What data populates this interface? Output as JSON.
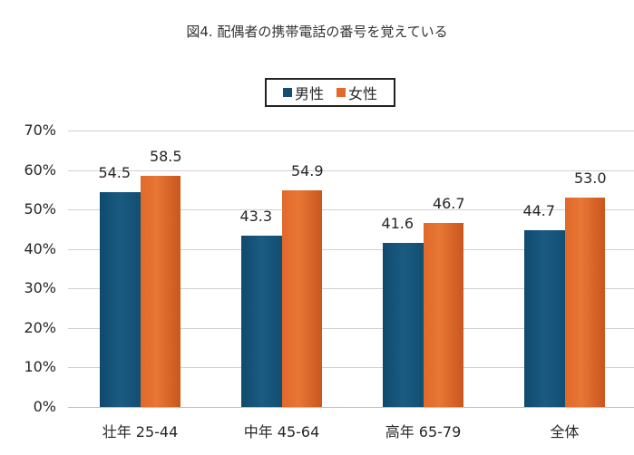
{
  "chart_data": {
    "type": "bar",
    "title": "図4. 配偶者の携帯電話の番号を覚えている",
    "xlabel": "",
    "ylabel": "",
    "categories": [
      "壮年 25-44",
      "中年 45-64",
      "高年 65-79",
      "全体"
    ],
    "series": [
      {
        "name": "男性",
        "color": "#134f73",
        "values": [
          54.5,
          43.3,
          41.6,
          44.7
        ],
        "labels": [
          "54.5",
          "43.3",
          "41.6",
          "44.7"
        ]
      },
      {
        "name": "女性",
        "color": "#e06a2b",
        "values": [
          58.5,
          54.9,
          46.7,
          53.0
        ],
        "labels": [
          "58.5",
          "54.9",
          "46.7",
          "53.0"
        ]
      }
    ],
    "ylim": [
      0,
      70
    ],
    "yticks": [
      "0%",
      "10%",
      "20%",
      "30%",
      "40%",
      "50%",
      "60%",
      "70%"
    ],
    "grid": true,
    "legend_position": "top",
    "data_labels": true
  }
}
